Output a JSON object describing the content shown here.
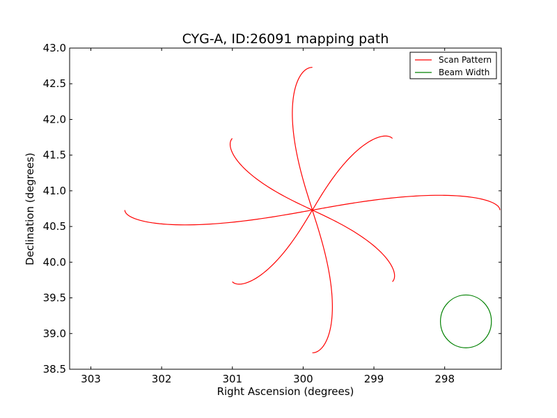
{
  "chart_data": {
    "type": "line",
    "title": "CYG-A, ID:26091 mapping path",
    "xlabel": "Right Ascension (degrees)",
    "ylabel": "Declination (degrees)",
    "xlim": [
      303.3,
      297.2
    ],
    "ylim": [
      38.5,
      43.0
    ],
    "x_ticks": [
      303,
      302,
      301,
      300,
      299,
      298
    ],
    "y_ticks": [
      38.5,
      39.0,
      39.5,
      40.0,
      40.5,
      41.0,
      41.5,
      42.0,
      42.5,
      43.0
    ],
    "x_tick_labels": [
      "303",
      "302",
      "301",
      "300",
      "299",
      "298"
    ],
    "y_tick_labels": [
      "38.5",
      "39.0",
      "39.5",
      "40.0",
      "40.5",
      "41.0",
      "41.5",
      "42.0",
      "42.5",
      "43.0"
    ],
    "grid": false,
    "legend_position": "top-right",
    "series": [
      {
        "name": "Scan Pattern",
        "color": "#ff0000",
        "shape": "eight-petal rose",
        "center": [
          299.87,
          40.73
        ],
        "petal_length_ra": 2.65,
        "petal_length_dec": 2.0,
        "petal_width_dec": 0.55,
        "petal_width_ra": 0.75
      },
      {
        "name": "Beam Width",
        "color": "#008000",
        "shape": "circle",
        "center": [
          297.7,
          39.17
        ],
        "radius_ra": 0.36,
        "radius_dec": 0.37
      }
    ]
  }
}
